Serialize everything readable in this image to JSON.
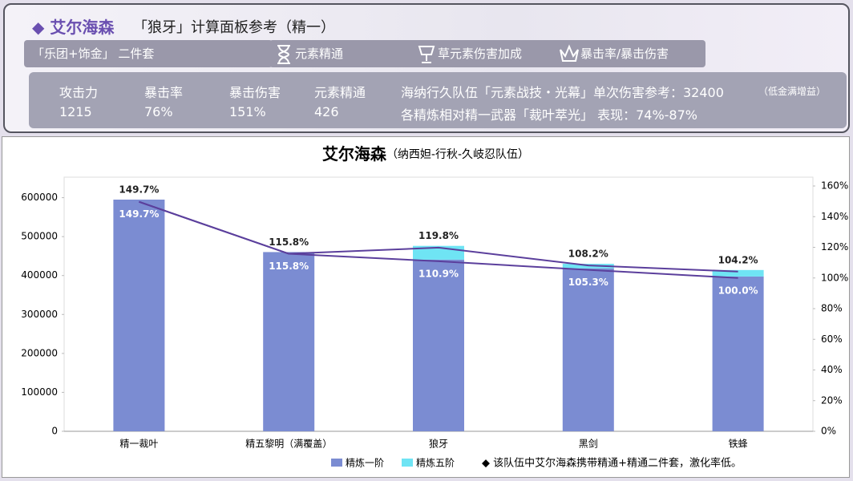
{
  "header": {
    "title_name": "◆ 艾尔海森",
    "title_rest": "「狼牙」计算面板参考（精一）",
    "tags": [
      "「乐团+饰金」 二件套",
      "元素精通",
      "草元素伤害加成",
      "暴击率/暴击伤害"
    ],
    "stats": [
      {
        "label": "攻击力",
        "value": "1215"
      },
      {
        "label": "暴击率",
        "value": "76%"
      },
      {
        "label": "暴击伤害",
        "value": "151%"
      },
      {
        "label": "元素精通",
        "value": "426"
      }
    ],
    "notes": [
      "海纳行久队伍「元素战技・光幕」单次伤害参考：32400",
      "（低金满增益）",
      "各精炼相对精一武器「裁叶萃光」 表现：74%-87%"
    ]
  },
  "chart_data": {
    "type": "bar",
    "title": "艾尔海森",
    "subtitle": "（纳西妲-行秋-久岐忍队伍）",
    "categories": [
      "精一裁叶",
      "精五黎明（满覆盖）",
      "狼牙",
      "黑剑",
      "铁蜂"
    ],
    "series": [
      {
        "name": "精炼一阶",
        "color": "#7b8cd2",
        "values": [
          595000,
          460300,
          440800,
          418500,
          397500
        ]
      },
      {
        "name": "精炼五阶",
        "color": "#6fe4f4",
        "values": [
          0,
          0,
          35400,
          11600,
          16700
        ]
      },
      {
        "type": "line",
        "axis": "y2",
        "color": "#5b3f9c",
        "values": [
          149.7,
          115.8,
          110.9,
          105.3,
          100.0
        ],
        "value_labels": [
          "149.7%",
          "115.8%",
          "110.9%",
          "105.3%",
          "100.0%"
        ]
      },
      {
        "type": "line",
        "axis": "y2",
        "color": "#5b3f9c",
        "values": [
          149.7,
          115.8,
          119.8,
          108.2,
          104.2
        ],
        "value_labels": [
          "149.7%",
          "115.8%",
          "119.8%",
          "108.2%",
          "104.2%"
        ]
      }
    ],
    "ylim": [
      0,
      630000
    ],
    "yticks": [
      0,
      100000,
      200000,
      300000,
      400000,
      500000,
      600000
    ],
    "y2lim": [
      0,
      160
    ],
    "y2ticks": [
      {
        "value": 0,
        "label": "0%"
      },
      {
        "value": 20,
        "label": "20%"
      },
      {
        "value": 40,
        "label": "40%"
      },
      {
        "value": 60,
        "label": "60%"
      },
      {
        "value": 80,
        "label": "80%"
      },
      {
        "value": 100,
        "label": "100%"
      },
      {
        "value": 120,
        "label": "120%"
      },
      {
        "value": 140,
        "label": "140%"
      },
      {
        "value": 160,
        "label": "160%"
      }
    ],
    "note": "◆ 该队伍中艾尔海森携带精通+精通二件套，激化率低。"
  }
}
